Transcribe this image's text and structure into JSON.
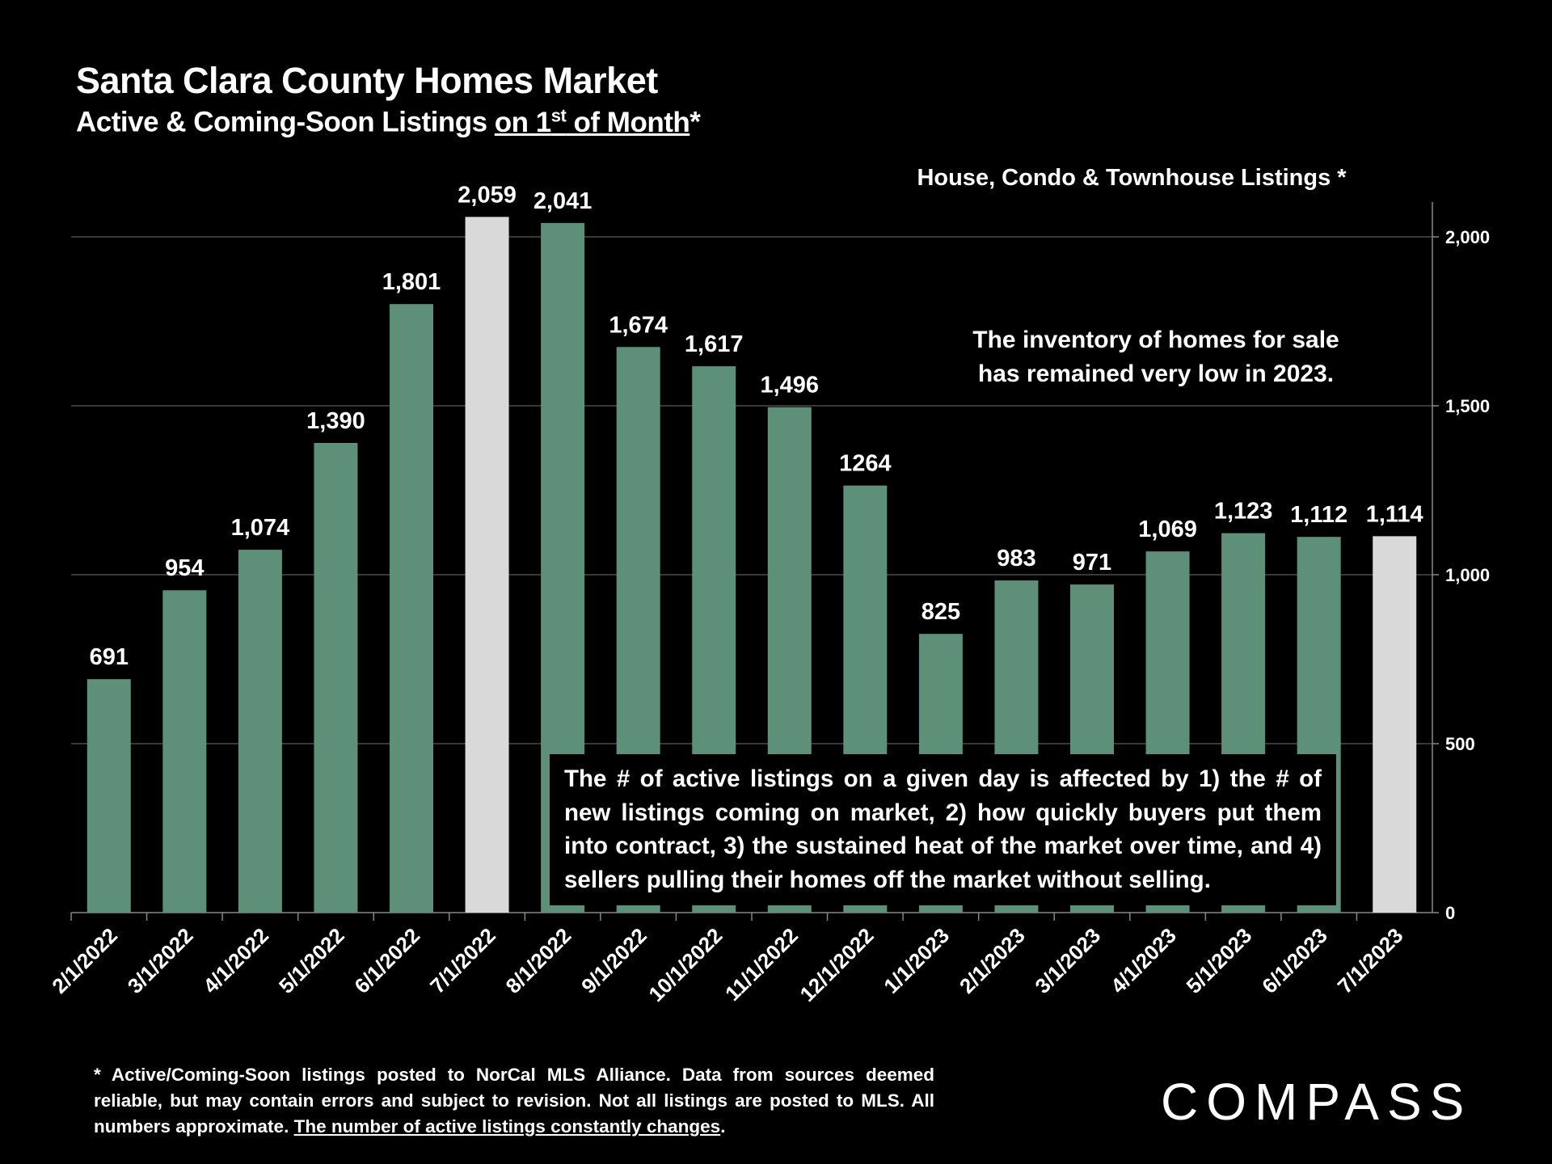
{
  "header": {
    "title": "Santa Clara County Homes Market",
    "subtitle_prefix": "Active & Coming-Soon Listings ",
    "subtitle_underlined": "on 1",
    "subtitle_sup": "st",
    "subtitle_underlined2": " of Month",
    "subtitle_suffix": "*"
  },
  "note": {
    "line1": "The inventory of homes for sale",
    "line2": "has remained very low in 2023."
  },
  "annotation": "The # of active listings on a given day is affected by 1) the # of new listings coming on market, 2) how quickly buyers put them into contract, 3) the sustained heat of the market over time, and 4) sellers pulling their homes off the market without selling.",
  "footnote": {
    "text": "* Active/Coming-Soon listings posted to NorCal MLS Alliance.  Data from sources deemed reliable, but may contain errors and subject to revision.  Not all listings are posted to MLS. All numbers approximate. ",
    "underlined": "The number of active listings constantly changes",
    "end": "."
  },
  "logo": "COMPASS",
  "colors": {
    "bar": "#5e8f78",
    "highlight": "#d9d9d9",
    "grid": "#4a4a4a"
  },
  "chart_data": {
    "type": "bar",
    "title": "Santa Clara County Homes Market",
    "series_label": "House, Condo & Townhouse Listings *",
    "categories": [
      "2/1/2022",
      "3/1/2022",
      "4/1/2022",
      "5/1/2022",
      "6/1/2022",
      "7/1/2022",
      "8/1/2022",
      "9/1/2022",
      "10/1/2022",
      "11/1/2022",
      "12/1/2022",
      "1/1/2023",
      "2/1/2023",
      "3/1/2023",
      "4/1/2023",
      "5/1/2023",
      "6/1/2023",
      "7/1/2023"
    ],
    "values": [
      691,
      954,
      1074,
      1390,
      1801,
      2059,
      2041,
      1674,
      1617,
      1496,
      1264,
      825,
      983,
      971,
      1069,
      1123,
      1112,
      1114
    ],
    "data_labels": [
      "691",
      "954",
      "1,074",
      "1,390",
      "1,801",
      "2,059",
      "2,041",
      "1,674",
      "1,617",
      "1,496",
      "1264",
      "825",
      "983",
      "971",
      "1,069",
      "1,123",
      "1,112",
      "1,114"
    ],
    "highlighted": [
      "7/1/2022",
      "7/1/2023"
    ],
    "ylim": [
      0,
      2100
    ],
    "yticks": [
      0,
      500,
      1000,
      1500,
      2000
    ],
    "ytick_labels": [
      "0",
      "500",
      "1,000",
      "1,500",
      "2,000"
    ],
    "yaxis_position": "right",
    "grid": true
  }
}
